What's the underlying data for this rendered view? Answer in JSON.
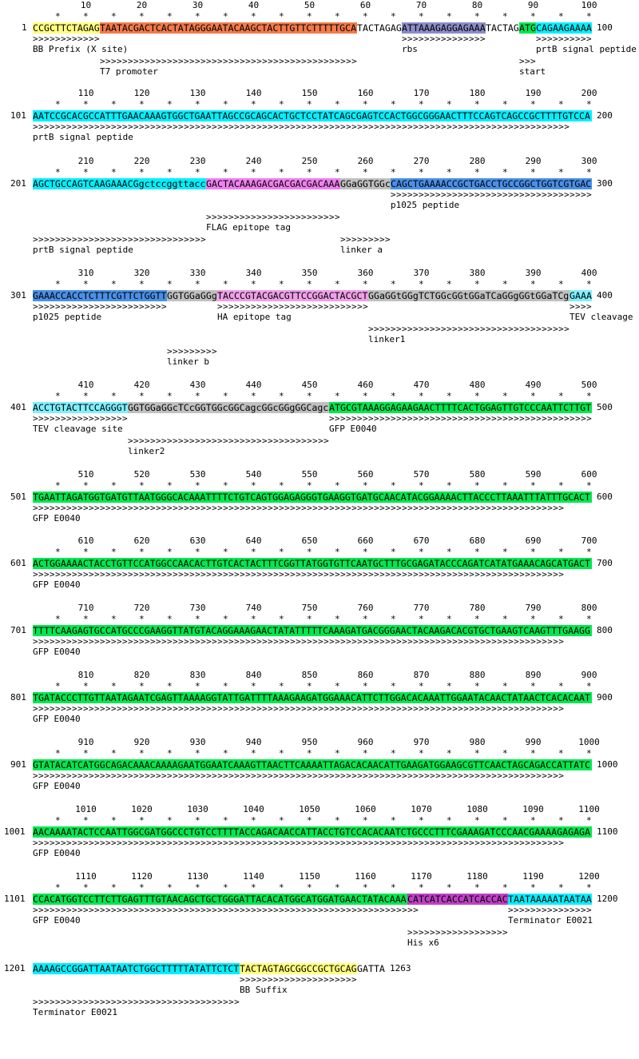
{
  "colors": {
    "yellow": "#ffff80",
    "orange": "#f37a4a",
    "purple_gray": "#8c8cc8",
    "cyan": "#00f0ff",
    "green": "#00e850",
    "magenta": "#f080f0",
    "gray": "#c0c0c0",
    "blue": "#4a90e8",
    "light_cyan": "#80f0ff",
    "pink": "#f0a0e8",
    "violet": "#c040c8"
  },
  "blocks": [
    {
      "start": "1",
      "end": "100",
      "ruler": [
        "10",
        "20",
        "30",
        "40",
        "50",
        "60",
        "70",
        "80",
        "90",
        "100"
      ],
      "segments": [
        {
          "t": "CCGCTTCTAGAG",
          "c": "yellow"
        },
        {
          "t": "TAATACGACTCACTATAGGGAATACAAGCTACTTGTTCTTTTTGCA",
          "c": "orange"
        },
        {
          "t": "TACTAGAG",
          "c": "none"
        },
        {
          "t": "ATTAAAGAGGAGAAA",
          "c": "purple_gray"
        },
        {
          "t": "TACTAG",
          "c": "none"
        },
        {
          "t": "ATG",
          "c": "green"
        },
        {
          "t": "CAGAAGAAAA",
          "c": "cyan"
        }
      ],
      "annotations": [
        {
          "arrow": ">>>>>>>>>>>>",
          "label": "BB Prefix (X site)",
          "col": 0,
          "row": 0
        },
        {
          "arrow": ">>>>>>>>>>>>>>>",
          "label": "rbs",
          "col": 66,
          "row": 0
        },
        {
          "arrow": ">>>>>>>>>>",
          "label": "prtB signal peptide",
          "col": 90,
          "row": 0
        },
        {
          "arrow": ">>>>>>>>>>>>>>>>>>>>>>>>>>>>>>>>>>>>>>>>>>>>>>",
          "label": "T7 promoter",
          "col": 12,
          "row": 1
        },
        {
          "arrow": ">>>",
          "label": "start",
          "col": 87,
          "row": 1
        }
      ]
    },
    {
      "start": "101",
      "end": "200",
      "ruler": [
        "110",
        "120",
        "130",
        "140",
        "150",
        "160",
        "170",
        "180",
        "190",
        "200"
      ],
      "segments": [
        {
          "t": "AATCCGCACGCCATTTGAACAAAGTGGCTGAATTAGCCGCAGCACTGCTCCTATCAGCGAGTCCACTGGCGGGAACTTTCCAGTCAGCCGCTTTTGTCCA",
          "c": "cyan"
        }
      ],
      "annotations": [
        {
          "arrow": ">>>>>>>>>>>>>>>>>>>>>>>>>>>>>>>>>>>>>>>>>>>>>>>>>>>>>>>>>>>>>>>>>>>>>>>>>>>>>>>>>>>>>>>>>>>>>>>>",
          "label": "prtB signal peptide",
          "col": 0,
          "row": 0
        }
      ]
    },
    {
      "start": "201",
      "end": "300",
      "ruler": [
        "210",
        "220",
        "230",
        "240",
        "250",
        "260",
        "270",
        "280",
        "290",
        "300"
      ],
      "segments": [
        {
          "t": "AGCTGCCAGTCAAGAAACGgctccggttacc",
          "c": "cyan"
        },
        {
          "t": "GACTACAAAGACGACGACGACAAA",
          "c": "magenta"
        },
        {
          "t": "GGaGGTGGc",
          "c": "gray"
        },
        {
          "t": "CAGCTGAAAACCGCTGACCTGCCGGCTGGTCGTGAC",
          "c": "blue"
        }
      ],
      "annotations": [
        {
          "arrow": ">>>>>>>>>>>>>>>>>>>>>>>>>>>>>>>>>>>>",
          "label": "p1025 peptide",
          "col": 64,
          "row": 0
        },
        {
          "arrow": ">>>>>>>>>>>>>>>>>>>>>>>>",
          "label": "FLAG epitope tag",
          "col": 31,
          "row": 1
        },
        {
          "arrow": ">>>>>>>>>>>>>>>>>>>>>>>>>>>>>>>",
          "label": "prtB signal peptide",
          "col": 0,
          "row": 2
        },
        {
          "arrow": ">>>>>>>>>",
          "label": "linker a",
          "col": 55,
          "row": 2
        }
      ]
    },
    {
      "start": "301",
      "end": "400",
      "ruler": [
        "310",
        "320",
        "330",
        "340",
        "350",
        "360",
        "370",
        "380",
        "390",
        "400"
      ],
      "segments": [
        {
          "t": "GAAACCACCTCTTTCGTTCTGGTT",
          "c": "blue"
        },
        {
          "t": "GGTGGaGGg",
          "c": "gray"
        },
        {
          "t": "TACCCGTACGACGTTCCGGACTACGCT",
          "c": "pink"
        },
        {
          "t": "GGaGGtGGgTCTGGcGGtGGaTCaGGgGGtGGaTCg",
          "c": "gray"
        },
        {
          "t": "GAAA",
          "c": "light_cyan"
        }
      ],
      "annotations": [
        {
          "arrow": ">>>>>>>>>>>>>>>>>>>>>>>>",
          "label": "p1025 peptide",
          "col": 0,
          "row": 0
        },
        {
          "arrow": ">>>>>>>>>>>>>>>>>>>>>>>>>>>",
          "label": "HA epitope tag",
          "col": 33,
          "row": 0
        },
        {
          "arrow": ">>>>",
          "label": "TEV cleavage site",
          "col": 96,
          "row": 0
        },
        {
          "arrow": ">>>>>>>>>>>>>>>>>>>>>>>>>>>>>>>>>>>>",
          "label": "linker1",
          "col": 60,
          "row": 1
        },
        {
          "arrow": ">>>>>>>>>",
          "label": "linker b",
          "col": 24,
          "row": 2
        }
      ]
    },
    {
      "start": "401",
      "end": "500",
      "ruler": [
        "410",
        "420",
        "430",
        "440",
        "450",
        "460",
        "470",
        "480",
        "490",
        "500"
      ],
      "segments": [
        {
          "t": "ACCTGTACTTCCAGGGT",
          "c": "light_cyan"
        },
        {
          "t": "GGTGGaGGcTCcGGTGGcGGCagcGGcGGgGGCagc",
          "c": "gray"
        },
        {
          "t": "ATGCGTAAAGGAGAAGAACTTTTCACTGGAGTTGTCCCAATTCTTGT",
          "c": "green"
        }
      ],
      "annotations": [
        {
          "arrow": ">>>>>>>>>>>>>>>>>",
          "label": "TEV cleavage site",
          "col": 0,
          "row": 0
        },
        {
          "arrow": ">>>>>>>>>>>>>>>>>>>>>>>>>>>>>>>>>>>>>>>>>>>>>>>",
          "label": "GFP E0040",
          "col": 53,
          "row": 0
        },
        {
          "arrow": ">>>>>>>>>>>>>>>>>>>>>>>>>>>>>>>>>>>>",
          "label": "linker2",
          "col": 17,
          "row": 1
        }
      ]
    },
    {
      "start": "501",
      "end": "600",
      "ruler": [
        "510",
        "520",
        "530",
        "540",
        "550",
        "560",
        "570",
        "580",
        "590",
        "600"
      ],
      "segments": [
        {
          "t": "TGAATTAGATGGTGATGTTAATGGGCACAAATTTTCTGTCAGTGGAGAGGGTGAAGGTGATGCAACATACGGAAAACTTACCCTTAAATTTATTTGCACT",
          "c": "green"
        }
      ],
      "annotations": [
        {
          "arrow": ">>>>>>>>>>>>>>>>>>>>>>>>>>>>>>>>>>>>>>>>>>>>>>>>>>>>>>>>>>>>>>>>>>>>>>>>>>>>>>>>>>>>>>>>>>>>>>>",
          "label": "GFP E0040",
          "col": 0,
          "row": 0
        }
      ]
    },
    {
      "start": "601",
      "end": "700",
      "ruler": [
        "610",
        "620",
        "630",
        "640",
        "650",
        "660",
        "670",
        "680",
        "690",
        "700"
      ],
      "segments": [
        {
          "t": "ACTGGAAAACTACCTGTTCCATGGCCAACACTTGTCACTACTTTCGGTTATGGTGTTCAATGCTTTGCGAGATACCCAGATCATATGAAACAGCATGACT",
          "c": "green"
        }
      ],
      "annotations": [
        {
          "arrow": ">>>>>>>>>>>>>>>>>>>>>>>>>>>>>>>>>>>>>>>>>>>>>>>>>>>>>>>>>>>>>>>>>>>>>>>>>>>>>>>>>>>>>>>>>>>>>>>",
          "label": "GFP E0040",
          "col": 0,
          "row": 0
        }
      ]
    },
    {
      "start": "701",
      "end": "800",
      "ruler": [
        "710",
        "720",
        "730",
        "740",
        "750",
        "760",
        "770",
        "780",
        "790",
        "800"
      ],
      "segments": [
        {
          "t": "TTTTCAAGAGTGCCATGCCCGAAGGTTATGTACAGGAAAGAACTATATTTTTCAAAGATGACGGGAACTACAAGACACGTGCTGAAGTCAAGTTTGAAGG",
          "c": "green"
        }
      ],
      "annotations": [
        {
          "arrow": ">>>>>>>>>>>>>>>>>>>>>>>>>>>>>>>>>>>>>>>>>>>>>>>>>>>>>>>>>>>>>>>>>>>>>>>>>>>>>>>>>>>>>>>>>>>>>>>",
          "label": "GFP E0040",
          "col": 0,
          "row": 0
        }
      ]
    },
    {
      "start": "801",
      "end": "900",
      "ruler": [
        "810",
        "820",
        "830",
        "840",
        "850",
        "860",
        "870",
        "880",
        "890",
        "900"
      ],
      "segments": [
        {
          "t": "TGATACCCTTGTTAATAGAATCGAGTTAAAAGGTATTGATTTTAAAGAAGATGGAAACATTCTTGGACACAAATTGGAATACAACTATAACTCACACAAT",
          "c": "green"
        }
      ],
      "annotations": [
        {
          "arrow": ">>>>>>>>>>>>>>>>>>>>>>>>>>>>>>>>>>>>>>>>>>>>>>>>>>>>>>>>>>>>>>>>>>>>>>>>>>>>>>>>>>>>>>>>>>>>>>>",
          "label": "GFP E0040",
          "col": 0,
          "row": 0
        }
      ]
    },
    {
      "start": "901",
      "end": "1000",
      "ruler": [
        "910",
        "920",
        "930",
        "940",
        "950",
        "960",
        "970",
        "980",
        "990",
        "1000"
      ],
      "segments": [
        {
          "t": "GTATACATCATGGCAGACAAACAAAAGAATGGAATCAAAGTTAACTTCAAAATTAGACACAACATTGAAGATGGAAGCGTTCAACTAGCAGACCATTATC",
          "c": "green"
        }
      ],
      "annotations": [
        {
          "arrow": ">>>>>>>>>>>>>>>>>>>>>>>>>>>>>>>>>>>>>>>>>>>>>>>>>>>>>>>>>>>>>>>>>>>>>>>>>>>>>>>>>>>>>>>>>>>>>>>",
          "label": "GFP E0040",
          "col": 0,
          "row": 0
        }
      ]
    },
    {
      "start": "1001",
      "end": "1100",
      "ruler": [
        "1010",
        "1020",
        "1030",
        "1040",
        "1050",
        "1060",
        "1070",
        "1080",
        "1090",
        "1100"
      ],
      "segments": [
        {
          "t": "AACAAAATACTCCAATTGGCGATGGCCCTGTCCTTTTACCAGACAACCATTACCTGTCCACACAATCTGCCCTTTCGAAAGATCCCAACGAAAAGAGAGA",
          "c": "green"
        }
      ],
      "annotations": [
        {
          "arrow": ">>>>>>>>>>>>>>>>>>>>>>>>>>>>>>>>>>>>>>>>>>>>>>>>>>>>>>>>>>>>>>>>>>>>>>>>>>>>>>>>>>>>>>>>>>>>>>>",
          "label": "GFP E0040",
          "col": 0,
          "row": 0
        }
      ]
    },
    {
      "start": "1101",
      "end": "1200",
      "ruler": [
        "1110",
        "1120",
        "1130",
        "1140",
        "1150",
        "1160",
        "1170",
        "1180",
        "1190",
        "1200"
      ],
      "segments": [
        {
          "t": "CCACATGGTCCTTCTTGAGTTTGTAACAGCTGCTGGGATTACACATGGCATGGATGAACTATACAAA",
          "c": "green"
        },
        {
          "t": "CATCATCACCATCACCAC",
          "c": "violet"
        },
        {
          "t": "TAATAAAAATAATAA",
          "c": "cyan"
        }
      ],
      "annotations": [
        {
          "arrow": ">>>>>>>>>>>>>>>>>>>>>>>>>>>>>>>>>>>>>>>>>>>>>>>>>>>>>>>>>>>>>>>>>>>>>",
          "label": "GFP E0040",
          "col": 0,
          "row": 0
        },
        {
          "arrow": ">>>>>>>>>>>>>>>",
          "label": "Terminator E0021",
          "col": 85,
          "row": 0
        },
        {
          "arrow": ">>>>>>>>>>>>>>>>>>",
          "label": "His x6",
          "col": 67,
          "row": 1
        }
      ]
    },
    {
      "start": "1201",
      "end": "1263",
      "ruler": [],
      "segments": [
        {
          "t": "AAAAGCCGGATTAATAATCTGGCTTTTTATATTCTCT",
          "c": "cyan"
        },
        {
          "t": "TACTAGTAGCGGCCGCTGCAG",
          "c": "yellow"
        },
        {
          "t": "GATTA",
          "c": "none"
        }
      ],
      "annotations": [
        {
          "arrow": ">>>>>>>>>>>>>>>>>>>>>",
          "label": "BB Suffix",
          "col": 37,
          "row": 0
        },
        {
          "arrow": ">>>>>>>>>>>>>>>>>>>>>>>>>>>>>>>>>>>>>",
          "label": "Terminator E0021",
          "col": 0,
          "row": 1
        }
      ]
    }
  ]
}
